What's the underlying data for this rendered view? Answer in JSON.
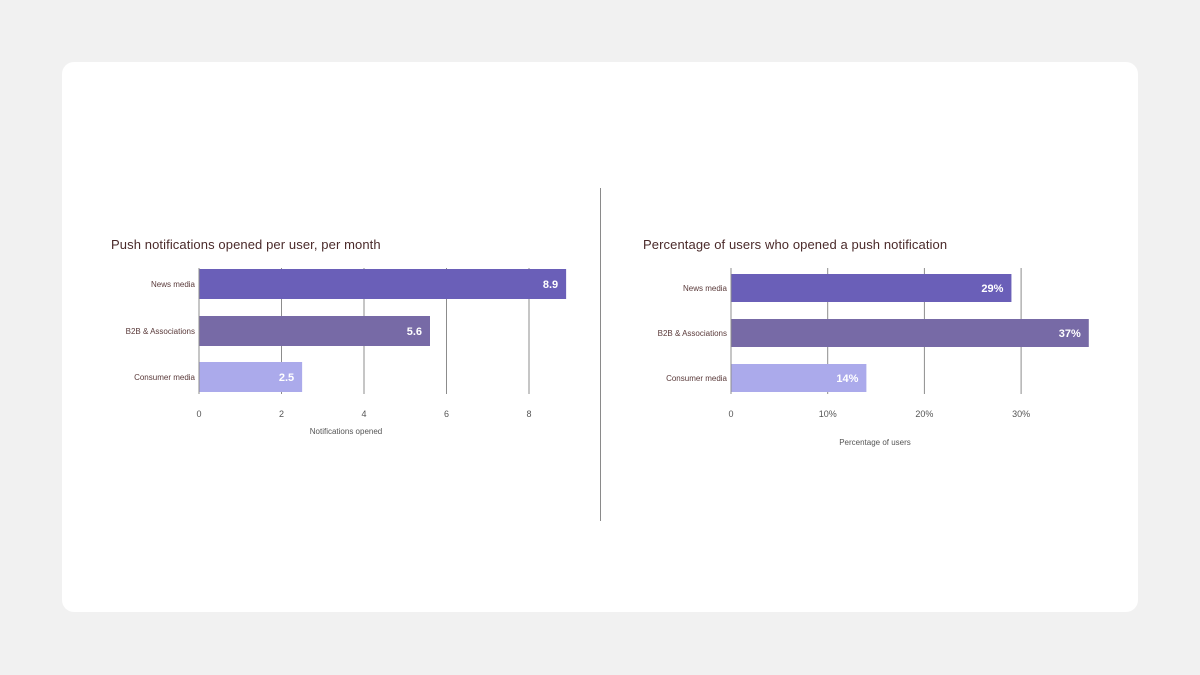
{
  "chart_data": [
    {
      "type": "bar",
      "orientation": "horizontal",
      "title": "Push notifications opened per user, per month",
      "xlabel": "Notifications opened",
      "ylabel": "",
      "categories": [
        "News media",
        "B2B & Associations",
        "Consumer media"
      ],
      "values": [
        8.9,
        5.6,
        2.5
      ],
      "value_labels": [
        "8.9",
        "5.6",
        "2.5"
      ],
      "colors": [
        "#6a5fb8",
        "#776aa6",
        "#abaaeb"
      ],
      "xlim": [
        0,
        8
      ],
      "ticks": [
        0,
        2,
        4,
        6,
        8
      ],
      "tick_labels": [
        "0",
        "2",
        "4",
        "6",
        "8"
      ],
      "grid": true
    },
    {
      "type": "bar",
      "orientation": "horizontal",
      "title": "Percentage of users who opened a push notification",
      "xlabel": "Percentage of users",
      "ylabel": "",
      "categories": [
        "News media",
        "B2B & Associations",
        "Consumer media"
      ],
      "values": [
        29,
        37,
        14
      ],
      "value_labels": [
        "29%",
        "37%",
        "14%"
      ],
      "colors": [
        "#6a5fb8",
        "#776aa6",
        "#abaaeb"
      ],
      "xlim": [
        0,
        30
      ],
      "ticks": [
        0,
        10,
        20,
        30
      ],
      "tick_labels": [
        "0",
        "10%",
        "20%",
        "30%"
      ],
      "grid": true
    }
  ]
}
